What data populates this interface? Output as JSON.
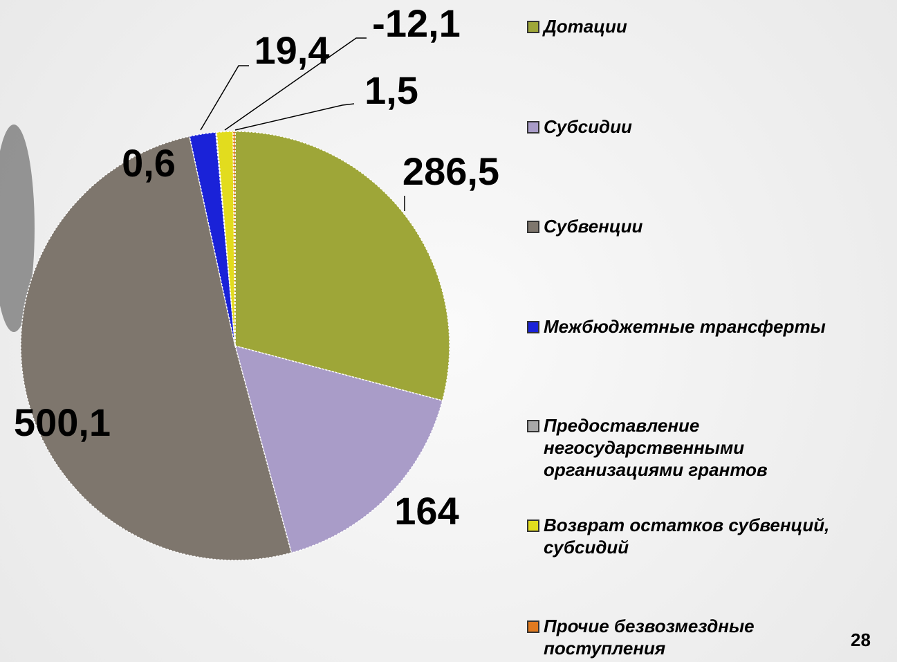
{
  "chart_data": {
    "type": "pie",
    "categories": [
      "Дотации",
      "Субсидии",
      "Субвенции",
      "Межбюджетные трансферты",
      "Предоставление негосударственными организациями грантов",
      "Возврат остатков субвенций, субсидий",
      "Прочие безвозмездные поступления"
    ],
    "values": [
      286.5,
      164,
      500.1,
      19.4,
      0.6,
      -12.1,
      1.5
    ],
    "value_labels": [
      "286,5",
      "164",
      "500,1",
      "19,4",
      "0,6",
      "-12,1",
      "1,5"
    ],
    "colors": [
      "#9ea638",
      "#a99cc8",
      "#7e766d",
      "#1a22d8",
      "#a8a8a8",
      "#e2dc1e",
      "#e07a20"
    ],
    "legend": "right"
  },
  "page_number": "28"
}
